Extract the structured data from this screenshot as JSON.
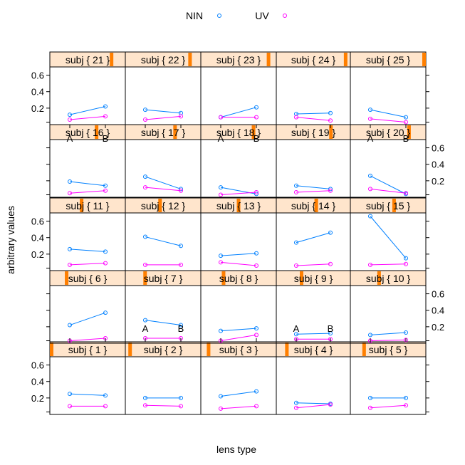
{
  "chart_data": {
    "type": "line",
    "layout": "lattice 5x5",
    "xlabel": "lens type",
    "ylabel": "arbitrary values",
    "categories": [
      "A",
      "B"
    ],
    "ylim": [
      0,
      0.7
    ],
    "yticks": [
      0.2,
      0.4,
      0.6
    ],
    "ytick_labels": [
      "0.2",
      "0.4",
      "0.6"
    ],
    "legend": {
      "placement": "top",
      "entries": [
        {
          "name": "NIN",
          "color": "#0080ff"
        },
        {
          "name": "UV",
          "color": "#ff00ff"
        }
      ]
    },
    "strip_bg": "#ffe5cc",
    "strip_indicator": "#ff7f00",
    "panels": [
      {
        "label": "subj { 1 }",
        "subject": 1,
        "NIN": [
          0.25,
          0.23
        ],
        "UV": [
          0.1,
          0.1
        ]
      },
      {
        "label": "subj { 2 }",
        "subject": 2,
        "NIN": [
          0.2,
          0.2
        ],
        "UV": [
          0.11,
          0.1
        ]
      },
      {
        "label": "subj { 3 }",
        "subject": 3,
        "NIN": [
          0.22,
          0.28
        ],
        "UV": [
          0.07,
          0.1
        ]
      },
      {
        "label": "subj { 4 }",
        "subject": 4,
        "NIN": [
          0.14,
          0.13
        ],
        "UV": [
          0.08,
          0.12
        ]
      },
      {
        "label": "subj { 5 }",
        "subject": 5,
        "NIN": [
          0.2,
          0.2
        ],
        "UV": [
          0.08,
          0.11
        ]
      },
      {
        "label": "subj { 6 }",
        "subject": 6,
        "NIN": [
          0.22,
          0.37
        ],
        "UV": [
          0.03,
          0.06
        ]
      },
      {
        "label": "subj { 7 }",
        "subject": 7,
        "NIN": [
          0.28,
          0.22
        ],
        "UV": [
          0.06,
          0.06
        ]
      },
      {
        "label": "subj { 8 }",
        "subject": 8,
        "NIN": [
          0.15,
          0.18
        ],
        "UV": [
          0.03,
          0.1
        ]
      },
      {
        "label": "subj { 9 }",
        "subject": 9,
        "NIN": [
          0.11,
          0.12
        ],
        "UV": [
          0.05,
          0.05
        ]
      },
      {
        "label": "subj { 10 }",
        "subject": 10,
        "NIN": [
          0.1,
          0.13
        ],
        "UV": [
          0.03,
          0.04
        ]
      },
      {
        "label": "subj { 11 }",
        "subject": 11,
        "NIN": [
          0.26,
          0.23
        ],
        "UV": [
          0.07,
          0.09
        ]
      },
      {
        "label": "subj { 12 }",
        "subject": 12,
        "NIN": [
          0.41,
          0.3
        ],
        "UV": [
          0.07,
          0.07
        ]
      },
      {
        "label": "subj { 13 }",
        "subject": 13,
        "NIN": [
          0.18,
          0.21
        ],
        "UV": [
          0.1,
          0.06
        ]
      },
      {
        "label": "subj { 14 }",
        "subject": 14,
        "NIN": [
          0.34,
          0.46
        ],
        "UV": [
          0.06,
          0.08
        ]
      },
      {
        "label": "subj { 15 }",
        "subject": 15,
        "NIN": [
          0.66,
          0.15
        ],
        "UV": [
          0.07,
          0.08
        ]
      },
      {
        "label": "subj { 16 }",
        "subject": 16,
        "NIN": [
          0.19,
          0.14
        ],
        "UV": [
          0.05,
          0.08
        ]
      },
      {
        "label": "subj { 17 }",
        "subject": 17,
        "NIN": [
          0.25,
          0.1
        ],
        "UV": [
          0.12,
          0.08
        ]
      },
      {
        "label": "subj { 18 }",
        "subject": 18,
        "NIN": [
          0.12,
          0.04
        ],
        "UV": [
          0.03,
          0.06
        ]
      },
      {
        "label": "subj { 19 }",
        "subject": 19,
        "NIN": [
          0.14,
          0.1
        ],
        "UV": [
          0.06,
          0.08
        ]
      },
      {
        "label": "subj { 20 }",
        "subject": 20,
        "NIN": [
          0.26,
          0.04
        ],
        "UV": [
          0.1,
          0.05
        ]
      },
      {
        "label": "subj { 21 }",
        "subject": 21,
        "NIN": [
          0.12,
          0.22
        ],
        "UV": [
          0.06,
          0.1
        ]
      },
      {
        "label": "subj { 22 }",
        "subject": 22,
        "NIN": [
          0.18,
          0.14
        ],
        "UV": [
          0.06,
          0.1
        ]
      },
      {
        "label": "subj { 23 }",
        "subject": 23,
        "NIN": [
          0.09,
          0.21
        ],
        "UV": [
          0.09,
          0.09
        ]
      },
      {
        "label": "subj { 24 }",
        "subject": 24,
        "NIN": [
          0.13,
          0.14
        ],
        "UV": [
          0.09,
          0.05
        ]
      },
      {
        "label": "subj { 25 }",
        "subject": 25,
        "NIN": [
          0.18,
          0.09
        ],
        "UV": [
          0.07,
          0.03
        ]
      }
    ]
  }
}
